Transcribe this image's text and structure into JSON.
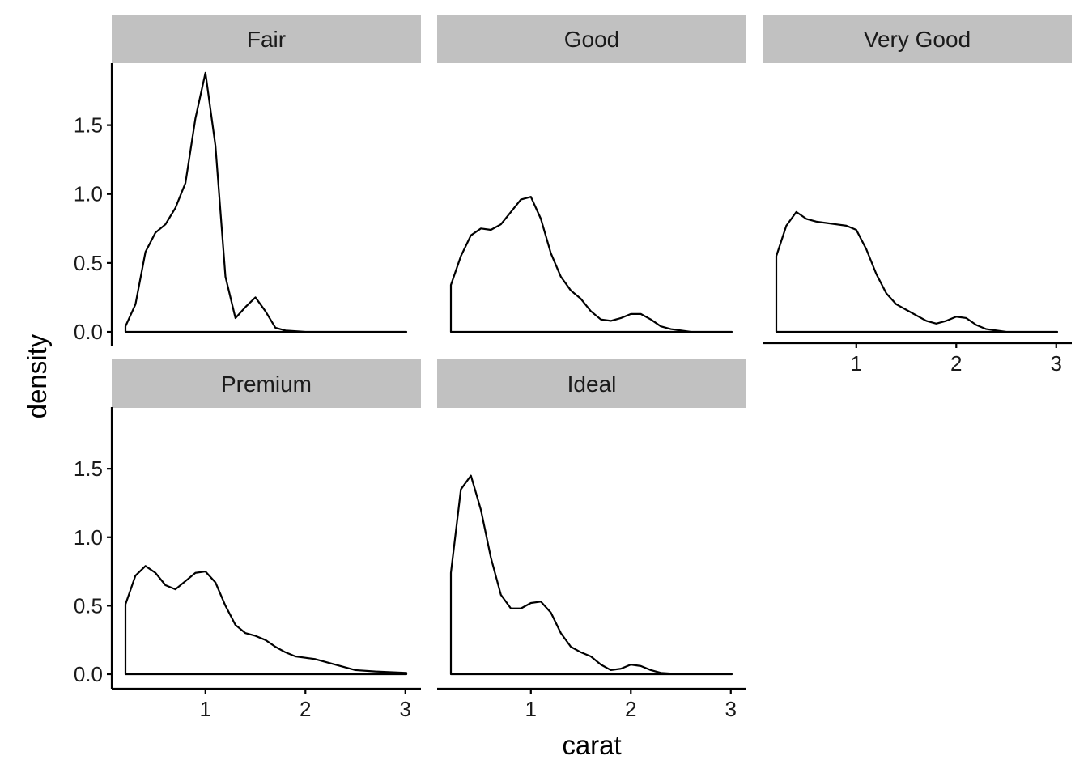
{
  "chart_data": {
    "type": "area",
    "facet_by": "cut",
    "xlabel": "carat",
    "ylabel": "density",
    "xlim": [
      0.2,
      3.01
    ],
    "ylim": [
      0,
      1.9
    ],
    "x_ticks": [
      1,
      2,
      3
    ],
    "x_tick_labels": [
      "1",
      "2",
      "3"
    ],
    "y_ticks": [
      0,
      0.5,
      1,
      1.5
    ],
    "y_tick_labels": [
      "0.0",
      "0.5",
      "1.0",
      "1.5"
    ],
    "grid": false,
    "panels": [
      {
        "name": "Fair",
        "x": [
          0.2,
          0.3,
          0.4,
          0.5,
          0.6,
          0.7,
          0.8,
          0.9,
          1.0,
          1.1,
          1.2,
          1.3,
          1.4,
          1.5,
          1.6,
          1.7,
          1.8,
          2.0,
          2.5,
          3.01
        ],
        "y": [
          0.04,
          0.2,
          0.58,
          0.72,
          0.78,
          0.9,
          1.08,
          1.55,
          1.88,
          1.35,
          0.4,
          0.1,
          0.18,
          0.25,
          0.15,
          0.03,
          0.01,
          0.0,
          0.0,
          0.0
        ]
      },
      {
        "name": "Good",
        "x": [
          0.2,
          0.3,
          0.4,
          0.5,
          0.6,
          0.7,
          0.8,
          0.9,
          1.0,
          1.1,
          1.2,
          1.3,
          1.4,
          1.5,
          1.6,
          1.7,
          1.8,
          1.9,
          2.0,
          2.1,
          2.2,
          2.3,
          2.4,
          2.6,
          3.01
        ],
        "y": [
          0.34,
          0.55,
          0.7,
          0.75,
          0.74,
          0.78,
          0.87,
          0.96,
          0.98,
          0.82,
          0.57,
          0.4,
          0.3,
          0.24,
          0.15,
          0.09,
          0.08,
          0.1,
          0.13,
          0.13,
          0.09,
          0.04,
          0.02,
          0.0,
          0.0
        ]
      },
      {
        "name": "Very Good",
        "x": [
          0.2,
          0.3,
          0.4,
          0.5,
          0.6,
          0.7,
          0.8,
          0.9,
          1.0,
          1.1,
          1.2,
          1.3,
          1.4,
          1.5,
          1.6,
          1.7,
          1.8,
          1.9,
          2.0,
          2.1,
          2.2,
          2.3,
          2.5,
          3.01
        ],
        "y": [
          0.55,
          0.77,
          0.87,
          0.82,
          0.8,
          0.79,
          0.78,
          0.77,
          0.74,
          0.6,
          0.42,
          0.28,
          0.2,
          0.16,
          0.12,
          0.08,
          0.06,
          0.08,
          0.11,
          0.1,
          0.05,
          0.02,
          0.0,
          0.0
        ]
      },
      {
        "name": "Premium",
        "x": [
          0.2,
          0.3,
          0.4,
          0.5,
          0.6,
          0.7,
          0.8,
          0.9,
          1.0,
          1.1,
          1.2,
          1.3,
          1.4,
          1.5,
          1.6,
          1.7,
          1.8,
          1.9,
          2.0,
          2.1,
          2.2,
          2.3,
          2.4,
          2.5,
          2.7,
          3.01
        ],
        "y": [
          0.51,
          0.72,
          0.79,
          0.74,
          0.65,
          0.62,
          0.68,
          0.74,
          0.75,
          0.67,
          0.5,
          0.36,
          0.3,
          0.28,
          0.25,
          0.2,
          0.16,
          0.13,
          0.12,
          0.11,
          0.09,
          0.07,
          0.05,
          0.03,
          0.02,
          0.01
        ]
      },
      {
        "name": "Ideal",
        "x": [
          0.2,
          0.3,
          0.4,
          0.5,
          0.6,
          0.7,
          0.8,
          0.9,
          1.0,
          1.1,
          1.2,
          1.3,
          1.4,
          1.5,
          1.6,
          1.7,
          1.8,
          1.9,
          2.0,
          2.1,
          2.2,
          2.3,
          2.5,
          3.01
        ],
        "y": [
          0.74,
          1.35,
          1.45,
          1.2,
          0.85,
          0.58,
          0.48,
          0.48,
          0.52,
          0.53,
          0.45,
          0.3,
          0.2,
          0.16,
          0.13,
          0.07,
          0.03,
          0.04,
          0.07,
          0.06,
          0.03,
          0.01,
          0.0,
          0.0
        ]
      }
    ]
  }
}
